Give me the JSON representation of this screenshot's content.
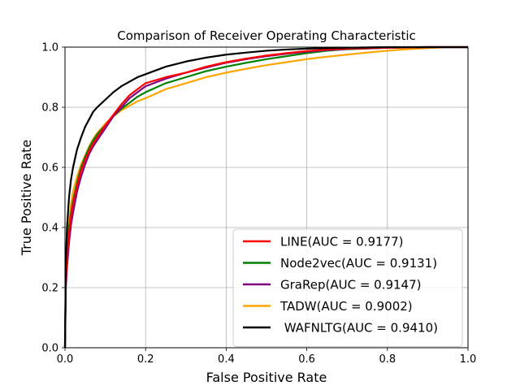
{
  "chart_data": {
    "type": "line",
    "title": "Comparison of Receiver Operating Characteristic",
    "xlabel": "False Positive Rate",
    "ylabel": "True Positive Rate",
    "xlim": [
      0,
      1
    ],
    "ylim": [
      0,
      1
    ],
    "xticks": [
      "0.0",
      "0.2",
      "0.4",
      "0.6",
      "0.8",
      "1.0"
    ],
    "yticks": [
      "0.0",
      "0.2",
      "0.4",
      "0.6",
      "0.8",
      "1.0"
    ],
    "grid": true,
    "legend_position": "lower-right",
    "series": [
      {
        "name": "LINE(AUC = 0.9177)",
        "color": "#ff0000",
        "points": [
          [
            0,
            0
          ],
          [
            0.002,
            0.22
          ],
          [
            0.005,
            0.3
          ],
          [
            0.01,
            0.38
          ],
          [
            0.015,
            0.44
          ],
          [
            0.02,
            0.48
          ],
          [
            0.03,
            0.54
          ],
          [
            0.04,
            0.59
          ],
          [
            0.05,
            0.625
          ],
          [
            0.06,
            0.655
          ],
          [
            0.07,
            0.68
          ],
          [
            0.08,
            0.7
          ],
          [
            0.1,
            0.74
          ],
          [
            0.12,
            0.775
          ],
          [
            0.14,
            0.81
          ],
          [
            0.16,
            0.84
          ],
          [
            0.18,
            0.86
          ],
          [
            0.2,
            0.88
          ],
          [
            0.25,
            0.9
          ],
          [
            0.3,
            0.915
          ],
          [
            0.35,
            0.935
          ],
          [
            0.4,
            0.95
          ],
          [
            0.45,
            0.962
          ],
          [
            0.5,
            0.972
          ],
          [
            0.55,
            0.98
          ],
          [
            0.6,
            0.987
          ],
          [
            0.65,
            0.992
          ],
          [
            0.7,
            0.995
          ],
          [
            0.8,
            0.998
          ],
          [
            0.9,
            1.0
          ],
          [
            1.0,
            1.0
          ]
        ]
      },
      {
        "name": "Node2vec(AUC = 0.9131)",
        "color": "#008000",
        "points": [
          [
            0,
            0
          ],
          [
            0.002,
            0.24
          ],
          [
            0.005,
            0.32
          ],
          [
            0.01,
            0.4
          ],
          [
            0.015,
            0.45
          ],
          [
            0.02,
            0.49
          ],
          [
            0.03,
            0.55
          ],
          [
            0.04,
            0.6
          ],
          [
            0.05,
            0.635
          ],
          [
            0.06,
            0.665
          ],
          [
            0.07,
            0.69
          ],
          [
            0.08,
            0.71
          ],
          [
            0.1,
            0.74
          ],
          [
            0.12,
            0.77
          ],
          [
            0.14,
            0.795
          ],
          [
            0.16,
            0.815
          ],
          [
            0.18,
            0.835
          ],
          [
            0.2,
            0.85
          ],
          [
            0.25,
            0.88
          ],
          [
            0.3,
            0.9
          ],
          [
            0.35,
            0.92
          ],
          [
            0.4,
            0.935
          ],
          [
            0.45,
            0.948
          ],
          [
            0.5,
            0.96
          ],
          [
            0.55,
            0.97
          ],
          [
            0.6,
            0.98
          ],
          [
            0.65,
            0.988
          ],
          [
            0.7,
            0.993
          ],
          [
            0.8,
            0.998
          ],
          [
            0.9,
            1.0
          ],
          [
            1.0,
            1.0
          ]
        ]
      },
      {
        "name": "GraRep(AUC = 0.9147)",
        "color": "#800080",
        "points": [
          [
            0,
            0
          ],
          [
            0.002,
            0.2
          ],
          [
            0.005,
            0.27
          ],
          [
            0.01,
            0.35
          ],
          [
            0.015,
            0.41
          ],
          [
            0.02,
            0.45
          ],
          [
            0.03,
            0.52
          ],
          [
            0.04,
            0.57
          ],
          [
            0.05,
            0.61
          ],
          [
            0.06,
            0.645
          ],
          [
            0.07,
            0.67
          ],
          [
            0.08,
            0.69
          ],
          [
            0.1,
            0.73
          ],
          [
            0.12,
            0.77
          ],
          [
            0.14,
            0.8
          ],
          [
            0.16,
            0.83
          ],
          [
            0.18,
            0.85
          ],
          [
            0.2,
            0.87
          ],
          [
            0.25,
            0.895
          ],
          [
            0.3,
            0.915
          ],
          [
            0.35,
            0.932
          ],
          [
            0.4,
            0.948
          ],
          [
            0.45,
            0.96
          ],
          [
            0.5,
            0.97
          ],
          [
            0.55,
            0.978
          ],
          [
            0.6,
            0.985
          ],
          [
            0.65,
            0.99
          ],
          [
            0.7,
            0.994
          ],
          [
            0.8,
            0.998
          ],
          [
            0.9,
            1.0
          ],
          [
            1.0,
            1.0
          ]
        ]
      },
      {
        "name": "TADW(AUC = 0.9002)",
        "color": "#ffa500",
        "points": [
          [
            0,
            0
          ],
          [
            0.002,
            0.25
          ],
          [
            0.005,
            0.34
          ],
          [
            0.01,
            0.42
          ],
          [
            0.015,
            0.48
          ],
          [
            0.02,
            0.52
          ],
          [
            0.03,
            0.57
          ],
          [
            0.04,
            0.61
          ],
          [
            0.05,
            0.64
          ],
          [
            0.06,
            0.67
          ],
          [
            0.07,
            0.695
          ],
          [
            0.08,
            0.715
          ],
          [
            0.1,
            0.745
          ],
          [
            0.12,
            0.77
          ],
          [
            0.14,
            0.79
          ],
          [
            0.16,
            0.805
          ],
          [
            0.18,
            0.82
          ],
          [
            0.2,
            0.83
          ],
          [
            0.25,
            0.86
          ],
          [
            0.3,
            0.88
          ],
          [
            0.35,
            0.9
          ],
          [
            0.4,
            0.915
          ],
          [
            0.45,
            0.928
          ],
          [
            0.5,
            0.94
          ],
          [
            0.55,
            0.95
          ],
          [
            0.6,
            0.96
          ],
          [
            0.65,
            0.968
          ],
          [
            0.7,
            0.975
          ],
          [
            0.75,
            0.982
          ],
          [
            0.8,
            0.988
          ],
          [
            0.85,
            0.993
          ],
          [
            0.9,
            0.997
          ],
          [
            0.95,
            1.0
          ],
          [
            1.0,
            1.0
          ]
        ]
      },
      {
        "name": " WAFNLTG(AUC = 0.9410)",
        "color": "#000000",
        "points": [
          [
            0,
            0
          ],
          [
            0.002,
            0.28
          ],
          [
            0.005,
            0.4
          ],
          [
            0.01,
            0.5
          ],
          [
            0.015,
            0.56
          ],
          [
            0.02,
            0.6
          ],
          [
            0.03,
            0.66
          ],
          [
            0.04,
            0.7
          ],
          [
            0.05,
            0.735
          ],
          [
            0.06,
            0.76
          ],
          [
            0.07,
            0.785
          ],
          [
            0.08,
            0.8
          ],
          [
            0.1,
            0.825
          ],
          [
            0.12,
            0.85
          ],
          [
            0.14,
            0.87
          ],
          [
            0.16,
            0.885
          ],
          [
            0.18,
            0.9
          ],
          [
            0.2,
            0.91
          ],
          [
            0.25,
            0.935
          ],
          [
            0.3,
            0.952
          ],
          [
            0.35,
            0.965
          ],
          [
            0.4,
            0.975
          ],
          [
            0.45,
            0.982
          ],
          [
            0.5,
            0.988
          ],
          [
            0.55,
            0.992
          ],
          [
            0.6,
            0.995
          ],
          [
            0.7,
            0.998
          ],
          [
            0.8,
            1.0
          ],
          [
            1.0,
            1.0
          ]
        ]
      }
    ]
  }
}
